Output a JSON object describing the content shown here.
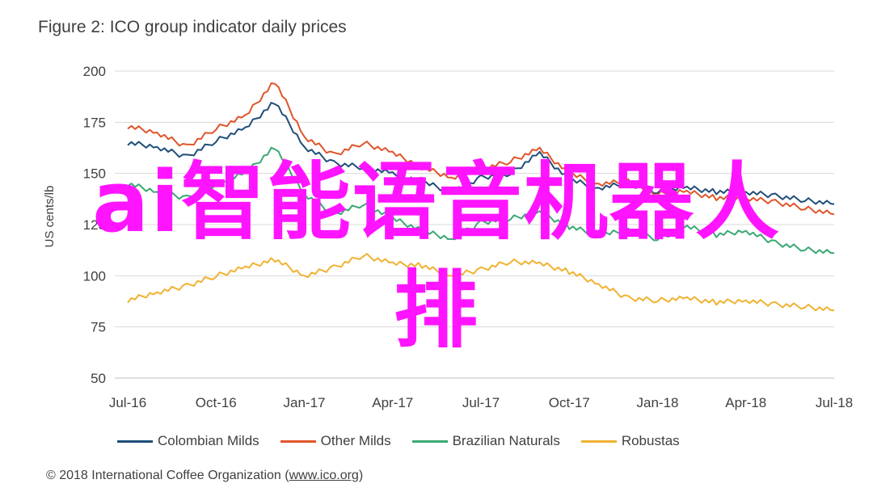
{
  "title": "Figure 2: ICO group indicator daily prices",
  "credit_prefix": "© 2018 International Coffee Organization (",
  "credit_link": "www.ico.org",
  "credit_suffix": ")",
  "watermark": {
    "line1": "ai智能语音机器人",
    "line2": "排"
  },
  "colors": {
    "colombian": "#1f4e79",
    "other": "#e0552b",
    "brazilian": "#3aa873",
    "robustas": "#f0b232",
    "grid": "#d9d9d9",
    "watermark": "#ff14ff"
  },
  "chart_data": {
    "type": "line",
    "ylabel": "US cents/lb",
    "ylim": [
      50,
      200
    ],
    "yticks": [
      "200",
      "175",
      "150",
      "125",
      "100",
      "75",
      "50"
    ],
    "x_tick_labels": [
      "Jul-16",
      "Oct-16",
      "Jan-17",
      "Apr-17",
      "Jul-17",
      "Oct-17",
      "Jan-18",
      "Apr-18",
      "Jul-18"
    ],
    "x": [
      "Jul-16",
      "Aug-16",
      "Sep-16",
      "Oct-16",
      "Nov-16",
      "Dec-16",
      "Jan-17",
      "Feb-17",
      "Mar-17",
      "Apr-17",
      "May-17",
      "Jun-17",
      "Jul-17",
      "Aug-17",
      "Sep-17",
      "Oct-17",
      "Nov-17",
      "Dec-17",
      "Jan-18",
      "Feb-18",
      "Mar-18",
      "Apr-18",
      "May-18",
      "Jun-18",
      "Jul-18"
    ],
    "legend_position": "bottom",
    "grid": true,
    "series": [
      {
        "name": "Colombian Milds",
        "color_key": "colombian",
        "values": [
          165,
          163,
          158,
          166,
          172,
          185,
          163,
          155,
          153,
          150,
          146,
          141,
          148,
          150,
          160,
          147,
          143,
          145,
          141,
          143,
          141,
          141,
          139,
          137,
          135
        ]
      },
      {
        "name": "Other Milds",
        "color_key": "other",
        "values": [
          173,
          170,
          163,
          172,
          178,
          195,
          168,
          159,
          165,
          160,
          153,
          148,
          152,
          156,
          162,
          150,
          145,
          146,
          140,
          141,
          138,
          138,
          136,
          133,
          130
        ]
      },
      {
        "name": "Brazilian Naturals",
        "color_key": "brazilian",
        "values": [
          145,
          141,
          138,
          145,
          150,
          163,
          140,
          130,
          135,
          128,
          122,
          118,
          126,
          128,
          131,
          124,
          120,
          122,
          118,
          124,
          120,
          122,
          116,
          113,
          111
        ]
      },
      {
        "name": "Robustas",
        "color_key": "robustas",
        "values": [
          88,
          92,
          95,
          100,
          104,
          108,
          100,
          104,
          110,
          106,
          105,
          100,
          103,
          107,
          106,
          102,
          96,
          89,
          88,
          89,
          87,
          88,
          86,
          85,
          83
        ]
      }
    ]
  }
}
